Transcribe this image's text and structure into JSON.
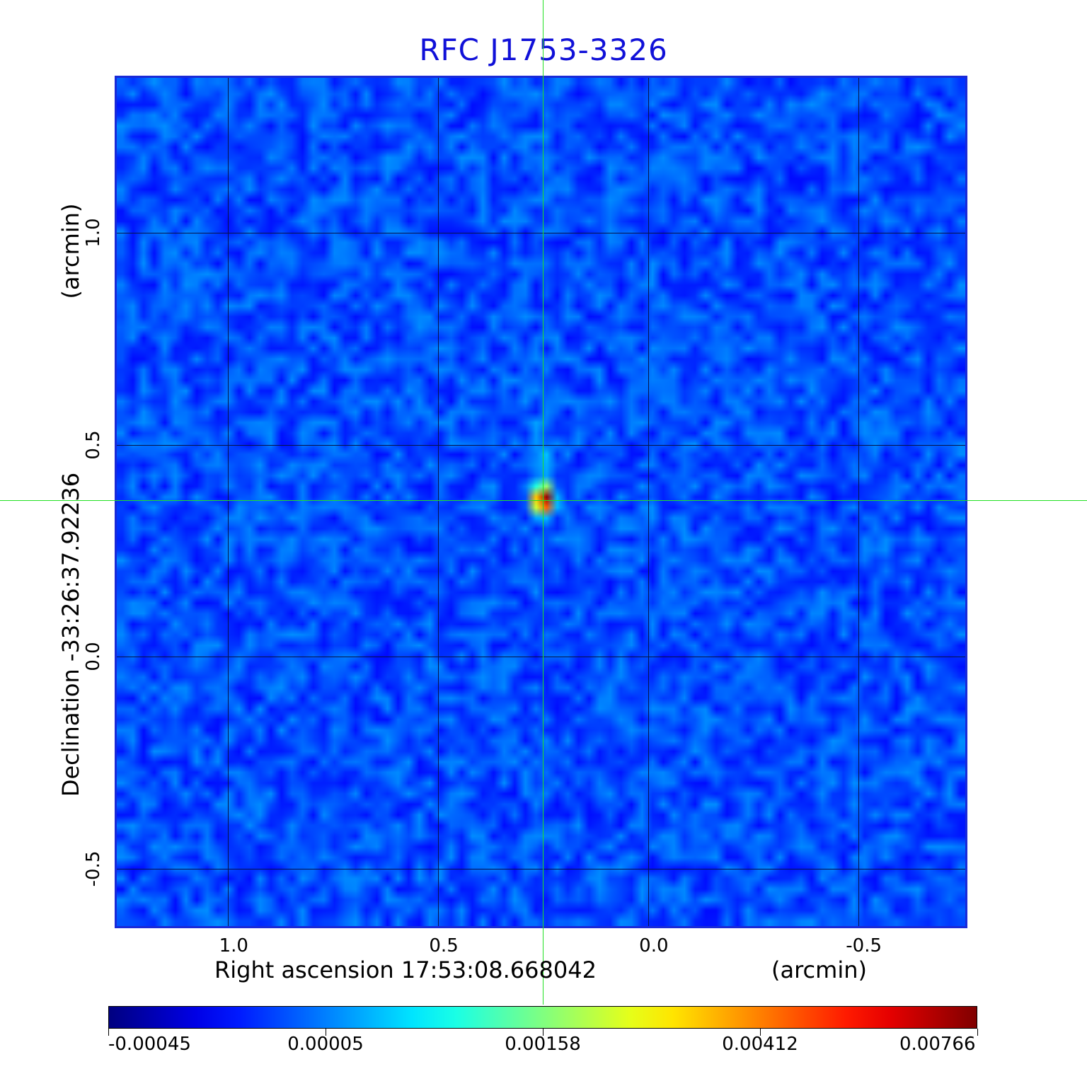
{
  "chart_data": {
    "type": "heatmap",
    "title": "RFC J1753-3326",
    "xlabel": "Right ascension  17:53:08.668042",
    "x_unit": "(arcmin)",
    "ylabel": "Declination  -33:26:37.92236",
    "y_unit": "(arcmin)",
    "x_ticks": [
      "1.0",
      "0.5",
      "0.0",
      "-0.5"
    ],
    "x_tick_values": [
      1.0,
      0.5,
      0.0,
      -0.5
    ],
    "y_ticks": [
      "1.0",
      "0.5",
      "0.0",
      "-0.5"
    ],
    "y_tick_values": [
      1.0,
      0.5,
      0.0,
      -0.5
    ],
    "x_range": [
      1.27,
      -0.76
    ],
    "y_range": [
      -0.64,
      1.37
    ],
    "grid": true,
    "crosshair": {
      "x": 0.25,
      "y": 0.37
    },
    "source_peak": {
      "x": 0.25,
      "y": 0.37,
      "value": 0.00766
    },
    "colorbar": {
      "ticks": [
        "-0.00045",
        "0.00005",
        "0.00158",
        "0.00412",
        "0.00766"
      ],
      "min": -0.00045,
      "max": 0.00766,
      "colormap": "jet"
    },
    "colors": {
      "background_noise": "#2f86ee",
      "grid": "#06124a",
      "crosshair": "#22e022",
      "frame": "#1a2ad8",
      "title": "#1010d8"
    }
  }
}
